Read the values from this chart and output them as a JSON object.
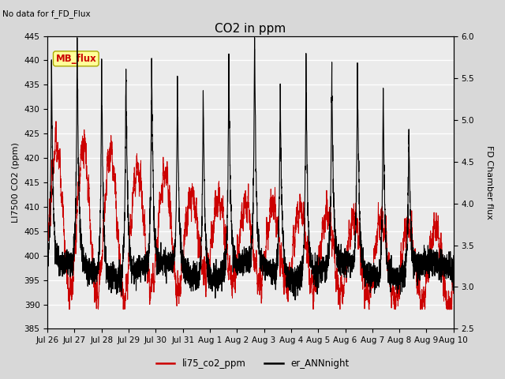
{
  "title": "CO2 in ppm",
  "note": "No data for f_FD_Flux",
  "ylabel_left": "LI7500 CO2 (ppm)",
  "ylabel_right": "FD Chamber flux",
  "ylim_left": [
    385,
    445
  ],
  "ylim_right": [
    2.5,
    6.0
  ],
  "yticks_left": [
    385,
    390,
    395,
    400,
    405,
    410,
    415,
    420,
    425,
    430,
    435,
    440,
    445
  ],
  "yticks_right": [
    2.5,
    3.0,
    3.5,
    4.0,
    4.5,
    5.0,
    5.5,
    6.0
  ],
  "bg_color": "#d8d8d8",
  "plot_bg_color": "#ebebeb",
  "line_color_red": "#cc0000",
  "line_color_black": "#000000",
  "legend_label_red": "li75_co2_ppm",
  "legend_label_black": "er_ANNnight",
  "mb_flux_label": "MB_flux",
  "mb_flux_box_color": "#ffff99",
  "mb_flux_text_color": "#cc0000",
  "x_tick_labels": [
    "Jul 26",
    "Jul 27",
    "Jul 28",
    "Jul 29",
    "Jul 30",
    "Jul 31",
    "Aug 1",
    "Aug 2",
    "Aug 3",
    "Aug 4",
    "Aug 5",
    "Aug 6",
    "Aug 7",
    "Aug 8",
    "Aug 9",
    "Aug 10"
  ],
  "title_fontsize": 11,
  "label_fontsize": 8,
  "tick_fontsize": 7.5,
  "note_fontsize": 7.5
}
